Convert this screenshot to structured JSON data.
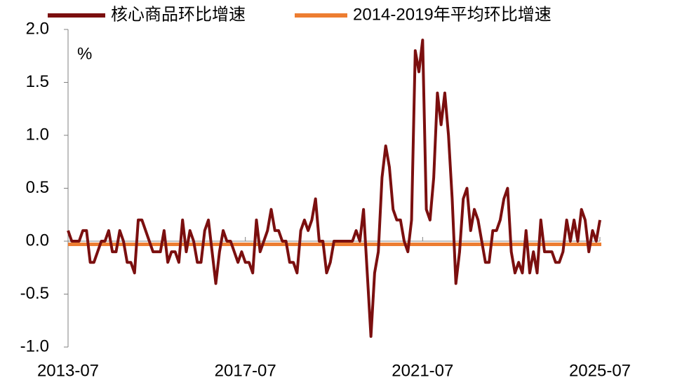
{
  "chart_data": {
    "type": "line",
    "y_unit_label": "%",
    "categories": [
      "2013-07",
      null,
      null,
      null,
      null,
      null,
      null,
      null,
      null,
      null,
      null,
      null,
      null,
      null,
      null,
      null,
      null,
      null,
      null,
      null,
      null,
      null,
      null,
      null,
      null,
      null,
      null,
      null,
      null,
      null,
      null,
      null,
      null,
      null,
      null,
      null,
      null,
      null,
      null,
      null,
      null,
      null,
      null,
      null,
      null,
      null,
      null,
      null,
      "2017-07",
      null,
      null,
      null,
      null,
      null,
      null,
      null,
      null,
      null,
      null,
      null,
      null,
      null,
      null,
      null,
      null,
      null,
      null,
      null,
      null,
      null,
      null,
      null,
      null,
      null,
      null,
      null,
      null,
      null,
      null,
      null,
      null,
      null,
      null,
      null,
      null,
      null,
      null,
      null,
      null,
      null,
      null,
      null,
      null,
      null,
      null,
      null,
      "2021-07",
      null,
      null,
      null,
      null,
      null,
      null,
      null,
      null,
      null,
      null,
      null,
      null,
      null,
      null,
      null,
      null,
      null,
      null,
      null,
      null,
      null,
      null,
      null,
      null,
      null,
      null,
      null,
      null,
      null,
      null,
      null,
      null,
      null,
      null,
      null,
      null,
      null,
      null,
      null,
      null,
      null,
      null,
      null,
      null,
      null,
      null,
      null,
      "2025-07"
    ],
    "series": [
      {
        "name": "核心商品环比增速",
        "color": "#7b0f0f",
        "values": [
          0.1,
          0,
          0,
          0,
          0.1,
          0.1,
          -0.2,
          -0.2,
          -0.1,
          0,
          0,
          0.1,
          -0.1,
          -0.1,
          0.1,
          0,
          -0.2,
          -0.2,
          -0.3,
          0.2,
          0.2,
          0.1,
          0,
          -0.1,
          -0.1,
          -0.1,
          0.1,
          -0.2,
          -0.1,
          -0.1,
          -0.2,
          0.2,
          -0.1,
          0.1,
          0,
          -0.2,
          -0.2,
          0.1,
          0.2,
          -0.1,
          -0.4,
          -0.1,
          0.1,
          0,
          0,
          -0.1,
          -0.2,
          -0.1,
          -0.2,
          -0.2,
          -0.3,
          0.2,
          -0.1,
          0,
          0.1,
          0.3,
          0.1,
          0.1,
          0,
          0,
          -0.2,
          -0.2,
          -0.3,
          0.1,
          0.2,
          0.1,
          0.2,
          0.4,
          0,
          0,
          -0.3,
          -0.2,
          0,
          0,
          0,
          0,
          0,
          0,
          0.1,
          0,
          0.3,
          -0.3,
          -0.9,
          -0.3,
          -0.1,
          0.6,
          0.9,
          0.7,
          0.3,
          0.2,
          0.2,
          0,
          -0.1,
          0.2,
          1.8,
          1.6,
          1.9,
          0.3,
          0.2,
          0.6,
          1.4,
          1.1,
          1.4,
          1.0,
          0.4,
          -0.4,
          -0.1,
          0.4,
          0.5,
          0.1,
          0.3,
          0.2,
          0,
          -0.2,
          -0.2,
          0.1,
          0.1,
          0.2,
          0.4,
          0.5,
          -0.1,
          -0.3,
          -0.2,
          -0.3,
          0.1,
          -0.3,
          -0.1,
          -0.3,
          0.2,
          -0.1,
          -0.1,
          -0.1,
          -0.2,
          -0.2,
          -0.1,
          0.2,
          0,
          0.2,
          0,
          0.3,
          0.2,
          -0.1,
          0.1,
          0,
          0.2
        ]
      }
    ],
    "reference_line": {
      "name": "2014-2019年平均环比增速",
      "color": "#ed7d31",
      "value": -0.03
    },
    "ylim": [
      -1.0,
      2.0
    ],
    "yticks": [
      {
        "value": -1,
        "label": "-1.0"
      },
      {
        "value": -0.5,
        "label": "-0.5"
      },
      {
        "value": 0,
        "label": "0.0"
      },
      {
        "value": 0.5,
        "label": "0.5"
      },
      {
        "value": 1,
        "label": "1.0"
      },
      {
        "value": 1.5,
        "label": "1.5"
      },
      {
        "value": 2,
        "label": "2.0"
      }
    ],
    "grid": false
  }
}
